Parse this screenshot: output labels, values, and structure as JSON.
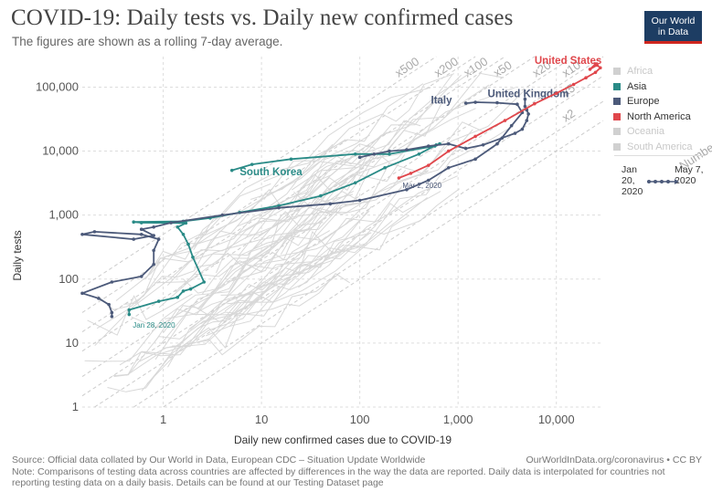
{
  "header": {
    "title": "COVID-19: Daily tests vs. Daily new confirmed cases",
    "subtitle": "The figures are shown as a rolling 7-day average.",
    "logo_line1": "Our World",
    "logo_line2": "in Data"
  },
  "legend": {
    "items": [
      {
        "label": "Africa",
        "active": false,
        "color": "#d0d0d0"
      },
      {
        "label": "Asia",
        "active": true,
        "color": "#2a8b87"
      },
      {
        "label": "Europe",
        "active": true,
        "color": "#4c5a7a"
      },
      {
        "label": "North America",
        "active": true,
        "color": "#e0474c"
      },
      {
        "label": "Oceania",
        "active": false,
        "color": "#d0d0d0"
      },
      {
        "label": "South America",
        "active": false,
        "color": "#d0d0d0"
      }
    ]
  },
  "timeline": {
    "start": "Jan 20, 2020",
    "end": "May 7, 2020"
  },
  "footer": {
    "source": "Source: Official data collated by Our World in Data, European CDC – Situation Update Worldwide",
    "url": "OurWorldInData.org/coronavirus • CC BY",
    "note": "Note: Comparisons of testing data across countries are affected by differences in the way the data are reported. Daily data is interpolated for countries not reporting testing data on a daily basis. Details can be found at our Testing Dataset page"
  },
  "chart_data": {
    "type": "scatter",
    "title": "COVID-19: Daily tests vs. Daily new confirmed cases",
    "xlabel": "Daily new confirmed cases due to COVID-19",
    "ylabel": "Daily tests",
    "x_scale": "log",
    "y_scale": "log",
    "xlim": [
      0.15,
      30000
    ],
    "ylim": [
      1,
      300000
    ],
    "x_ticks": [
      {
        "v": 1,
        "label": "1"
      },
      {
        "v": 10,
        "label": "10"
      },
      {
        "v": 100,
        "label": "100"
      },
      {
        "v": 1000,
        "label": "1,000"
      },
      {
        "v": 10000,
        "label": "10,000"
      }
    ],
    "y_ticks": [
      {
        "v": 1,
        "label": "1"
      },
      {
        "v": 10,
        "label": "10"
      },
      {
        "v": 100,
        "label": "100"
      },
      {
        "v": 1000,
        "label": "1,000"
      },
      {
        "v": 10000,
        "label": "10,000"
      },
      {
        "v": 100000,
        "label": "100,000"
      }
    ],
    "grid": true,
    "legend_position": "right",
    "ratio_lines": [
      {
        "factor": 500,
        "label": "x500"
      },
      {
        "factor": 200,
        "label": "x200"
      },
      {
        "factor": 100,
        "label": "x100"
      },
      {
        "factor": 50,
        "label": "x50"
      },
      {
        "factor": 20,
        "label": "x20"
      },
      {
        "factor": 10,
        "label": "x10"
      },
      {
        "factor": 5,
        "label": "x5"
      },
      {
        "factor": 2,
        "label": "x2"
      },
      {
        "factor": 1,
        "label": "Number of tests = Number of cases"
      }
    ],
    "annotations": [
      {
        "text": "Mar 2, 2020",
        "x": 250,
        "y": 3700,
        "color": "#4c5a7a"
      },
      {
        "text": "Jan 28, 2020",
        "x": 0.45,
        "y": 24,
        "color": "#2a8b87"
      }
    ],
    "series": [
      {
        "name": "South Korea",
        "region": "Asia",
        "color": "#2a8b87",
        "points": [
          [
            0.45,
            28
          ],
          [
            0.45,
            33
          ],
          [
            0.9,
            45
          ],
          [
            1.4,
            52
          ],
          [
            1.6,
            65
          ],
          [
            1.9,
            70
          ],
          [
            2.6,
            90
          ],
          [
            2,
            220
          ],
          [
            1.8,
            350
          ],
          [
            1.6,
            500
          ],
          [
            1.4,
            650
          ],
          [
            1.7,
            750
          ],
          [
            0.6,
            760
          ],
          [
            0.5,
            780
          ],
          [
            1.6,
            800
          ],
          [
            3,
            900
          ],
          [
            6,
            1100
          ],
          [
            15,
            1400
          ],
          [
            40,
            2000
          ],
          [
            90,
            3200
          ],
          [
            180,
            5500
          ],
          [
            400,
            9000
          ],
          [
            600,
            12500
          ],
          [
            650,
            13000
          ],
          [
            580,
            12000
          ],
          [
            200,
            9000
          ],
          [
            90,
            9000
          ],
          [
            20,
            7500
          ],
          [
            8,
            6200
          ],
          [
            5,
            5000
          ]
        ],
        "label": "South Korea",
        "label_x": 6,
        "label_y": 4200
      },
      {
        "name": "Italy",
        "region": "Europe",
        "color": "#4c5a7a",
        "points": [
          [
            0.3,
            26
          ],
          [
            0.3,
            30
          ],
          [
            0.28,
            40
          ],
          [
            0.22,
            50
          ],
          [
            0.15,
            60
          ],
          [
            0.3,
            90
          ],
          [
            0.6,
            110
          ],
          [
            0.8,
            170
          ],
          [
            0.8,
            280
          ],
          [
            0.9,
            420
          ],
          [
            0.6,
            500
          ],
          [
            0.2,
            550
          ],
          [
            0.15,
            500
          ],
          [
            0.5,
            420
          ],
          [
            0.8,
            480
          ],
          [
            0.6,
            600
          ],
          [
            0.8,
            650
          ],
          [
            1.2,
            760
          ],
          [
            4,
            1000
          ],
          [
            15,
            1300
          ],
          [
            50,
            1500
          ],
          [
            100,
            1700
          ],
          [
            300,
            2500
          ],
          [
            500,
            3500
          ],
          [
            800,
            5500
          ],
          [
            1500,
            7500
          ],
          [
            2500,
            13000
          ],
          [
            3500,
            25000
          ],
          [
            4500,
            40000
          ],
          [
            4000,
            54000
          ],
          [
            2500,
            57000
          ],
          [
            1500,
            58000
          ],
          [
            1200,
            56000
          ]
        ],
        "label": "Italy",
        "label_x": 530,
        "label_y": 55000
      },
      {
        "name": "United Kingdom",
        "region": "Europe",
        "color": "#4c5a7a",
        "points": [
          [
            100,
            8000
          ],
          [
            140,
            9000
          ],
          [
            200,
            10000
          ],
          [
            300,
            10500
          ],
          [
            500,
            12000
          ],
          [
            800,
            13000
          ],
          [
            1200,
            11000
          ],
          [
            1800,
            12500
          ],
          [
            2800,
            16000
          ],
          [
            3800,
            19000
          ],
          [
            4500,
            22000
          ],
          [
            5000,
            30000
          ],
          [
            5200,
            38000
          ],
          [
            5000,
            44000
          ],
          [
            4800,
            50000
          ],
          [
            4800,
            65000
          ]
        ],
        "label": "United Kingdom",
        "label_x": 2000,
        "label_y": 70000
      },
      {
        "name": "United States",
        "region": "North America",
        "color": "#e0474c",
        "points": [
          [
            250,
            3800
          ],
          [
            330,
            4500
          ],
          [
            500,
            6000
          ],
          [
            800,
            10000
          ],
          [
            1500,
            17000
          ],
          [
            3000,
            30000
          ],
          [
            6000,
            55000
          ],
          [
            10000,
            80000
          ],
          [
            15000,
            110000
          ],
          [
            20000,
            140000
          ],
          [
            25000,
            170000
          ],
          [
            28000,
            200000
          ],
          [
            25000,
            230000
          ],
          [
            22000,
            190000
          ],
          [
            26000,
            220000
          ]
        ],
        "label": "United States",
        "label_x": 6000,
        "label_y": 230000
      }
    ]
  }
}
